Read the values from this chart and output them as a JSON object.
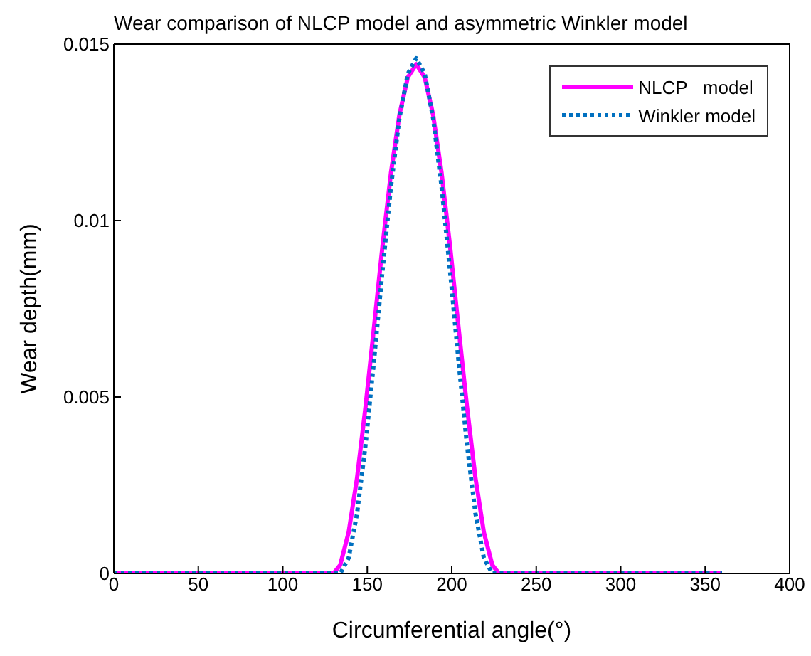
{
  "chart_data": {
    "type": "line",
    "title": "Wear comparison of NLCP model and asymmetric Winkler model",
    "xlabel": "Circumferential angle(°)",
    "ylabel": "Wear depth(mm)",
    "xlim": [
      0,
      400
    ],
    "xticks": [
      0,
      50,
      100,
      150,
      200,
      250,
      300,
      350,
      400
    ],
    "ylim": [
      0,
      0.015
    ],
    "yticks": [
      0,
      0.005,
      0.01,
      0.015
    ],
    "legend": "top right",
    "marker": "none",
    "series": [
      {
        "name": "NLCP   model",
        "color": "#ff00ff",
        "line_style": "solid",
        "x": [
          0,
          130,
          134,
          139,
          144,
          149,
          154,
          159,
          164,
          169,
          174,
          179,
          184,
          189,
          194,
          199,
          204,
          209,
          214,
          219,
          224,
          228,
          360
        ],
        "values": [
          0,
          0,
          0.00024,
          0.00117,
          0.00272,
          0.00473,
          0.00698,
          0.00927,
          0.01134,
          0.01299,
          0.01406,
          0.01443,
          0.01406,
          0.01299,
          0.01134,
          0.00927,
          0.00698,
          0.00473,
          0.00272,
          0.00117,
          0.00024,
          0,
          0
        ]
      },
      {
        "name": "Winkler model",
        "color": "#0070c0",
        "line_style": "dotted",
        "x": [
          0,
          134,
          139,
          144,
          149,
          154,
          159,
          164,
          169,
          174,
          179,
          184,
          189,
          194,
          199,
          204,
          209,
          214,
          219,
          224,
          360
        ],
        "values": [
          0,
          0,
          0.00044,
          0.00171,
          0.00365,
          0.00603,
          0.00857,
          0.01095,
          0.01289,
          0.01416,
          0.0146,
          0.01416,
          0.01289,
          0.01095,
          0.00857,
          0.00603,
          0.00365,
          0.00171,
          0.00044,
          0,
          0
        ]
      }
    ]
  }
}
